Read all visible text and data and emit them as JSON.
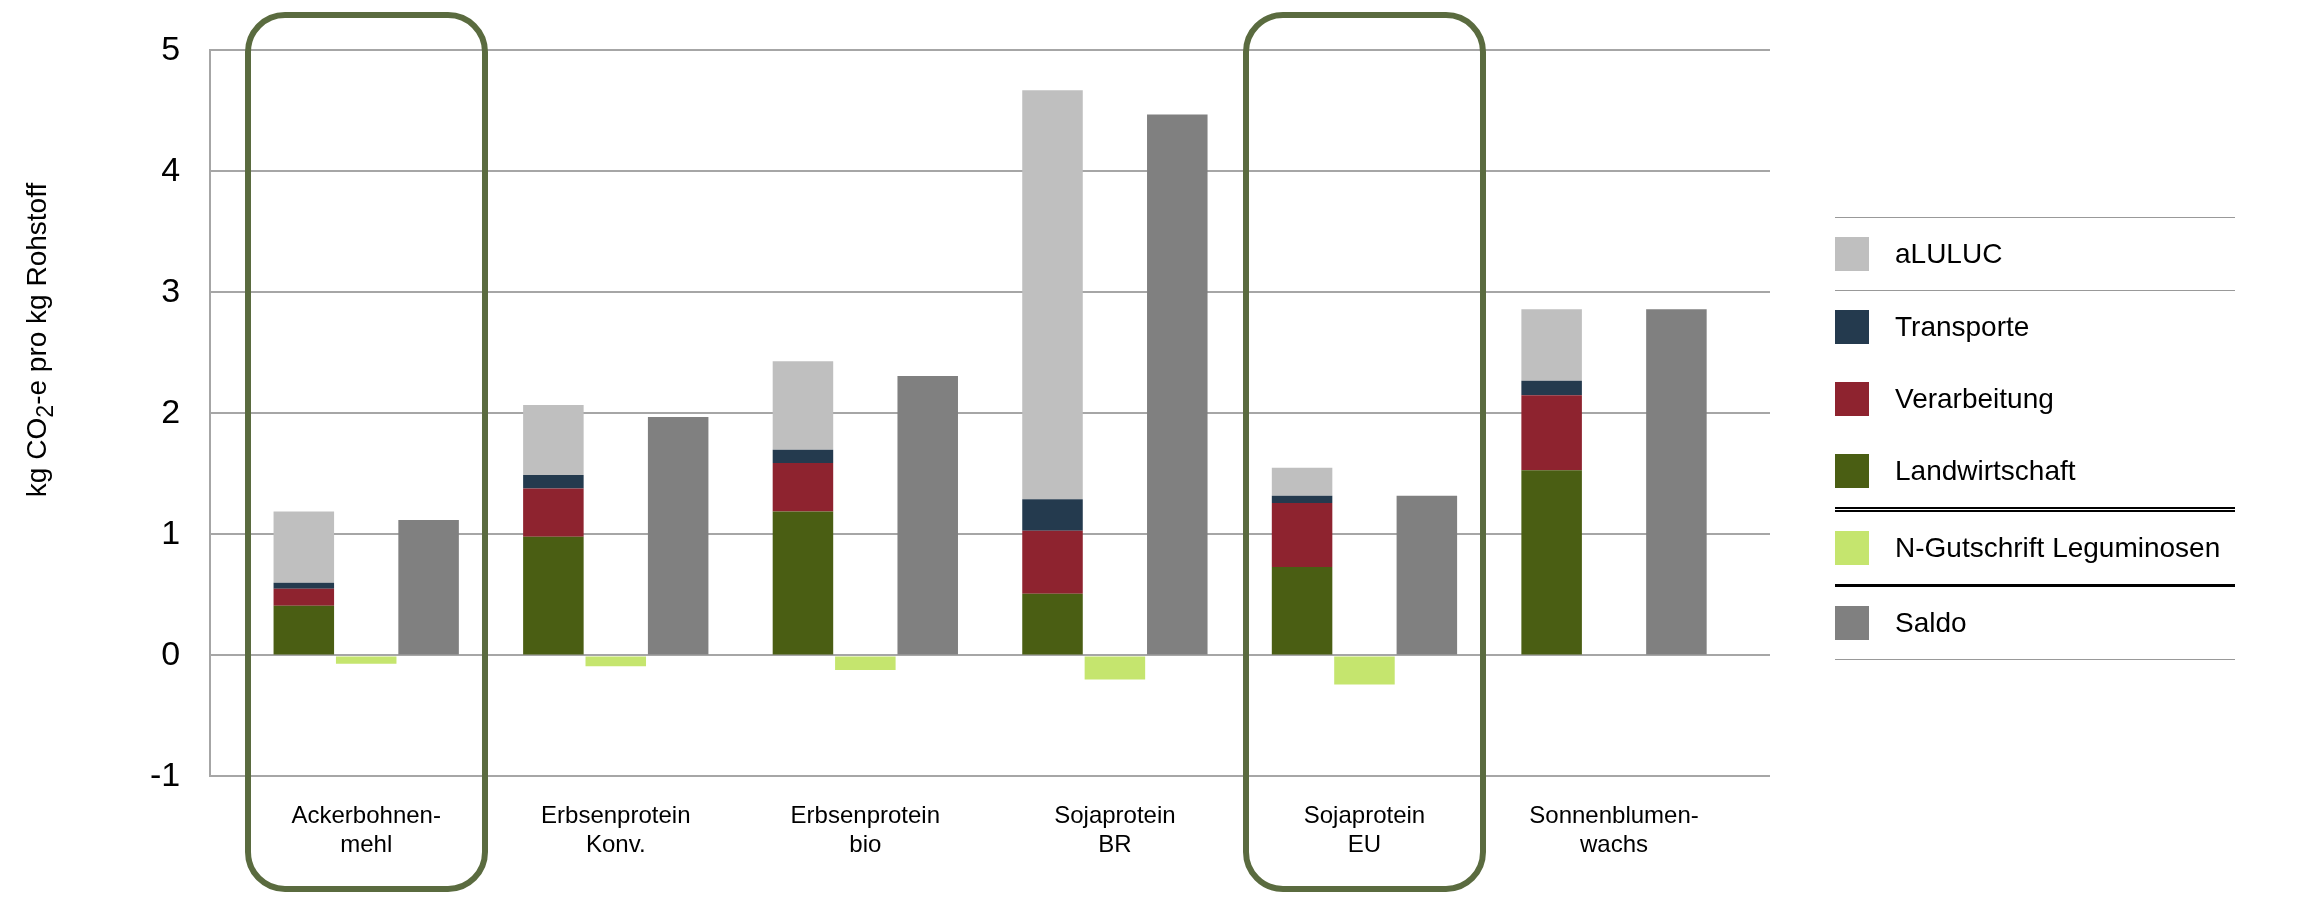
{
  "chart_data": {
    "type": "bar",
    "ylabel": "kg CO$_{2}$-e pro kg Rohstoff",
    "categories": [
      null,
      null,
      "Ackerbohnen-\nmehl",
      null,
      null,
      null,
      "Erbsenprotein\nKonv.",
      null,
      null,
      null,
      "Erbsenprotein\nbio",
      null,
      null,
      null,
      "Sojaprotein\nBR",
      null,
      null,
      null,
      "Sojaprotein\nEU",
      null,
      null,
      null,
      "Sonnenblumen-\nwachs",
      null,
      null
    ],
    "series": [
      {
        "name": "Landwirtschaft",
        "color": "#4a5e13",
        "values": [
          null,
          0.41,
          null,
          null,
          null,
          0.98,
          null,
          null,
          null,
          1.19,
          null,
          null,
          null,
          0.51,
          null,
          null,
          null,
          0.73,
          null,
          null,
          null,
          1.53,
          null,
          null,
          null
        ]
      },
      {
        "name": "Verarbeitung",
        "color": "#8e232f",
        "values": [
          null,
          0.14,
          null,
          null,
          null,
          0.4,
          null,
          null,
          null,
          0.4,
          null,
          null,
          null,
          0.52,
          null,
          null,
          null,
          0.53,
          null,
          null,
          null,
          0.62,
          null,
          null,
          null
        ]
      },
      {
        "name": "Transporte",
        "color": "#243a4e",
        "values": [
          null,
          0.05,
          null,
          null,
          null,
          0.11,
          null,
          null,
          null,
          0.11,
          null,
          null,
          null,
          0.26,
          null,
          null,
          null,
          0.06,
          null,
          null,
          null,
          0.12,
          null,
          null,
          null
        ]
      },
      {
        "name": "aLULUC",
        "color": "#bfbfbf",
        "values": [
          null,
          0.59,
          null,
          null,
          null,
          0.58,
          null,
          null,
          null,
          0.73,
          null,
          null,
          null,
          3.38,
          null,
          null,
          null,
          0.23,
          null,
          null,
          null,
          0.59,
          null,
          null,
          null
        ]
      },
      {
        "name": "N-Gutschrift Leguminosen",
        "color": "#c5e56e",
        "values": [
          null,
          null,
          -0.07,
          null,
          null,
          null,
          -0.09,
          null,
          null,
          null,
          -0.12,
          null,
          null,
          null,
          -0.2,
          null,
          null,
          null,
          -0.24,
          null,
          null,
          null,
          null,
          null,
          null
        ]
      },
      {
        "name": "Saldo",
        "color": "#808080",
        "values": [
          null,
          null,
          null,
          1.12,
          null,
          null,
          null,
          1.97,
          null,
          null,
          null,
          2.31,
          null,
          null,
          null,
          4.47,
          null,
          null,
          null,
          1.32,
          null,
          null,
          null,
          2.86,
          null
        ]
      }
    ],
    "stacked": true,
    "ylim": [
      -1,
      5
    ],
    "yticks": [
      -1,
      0,
      1,
      2,
      3,
      4,
      5
    ],
    "grid": "y",
    "legend": "right"
  }
}
